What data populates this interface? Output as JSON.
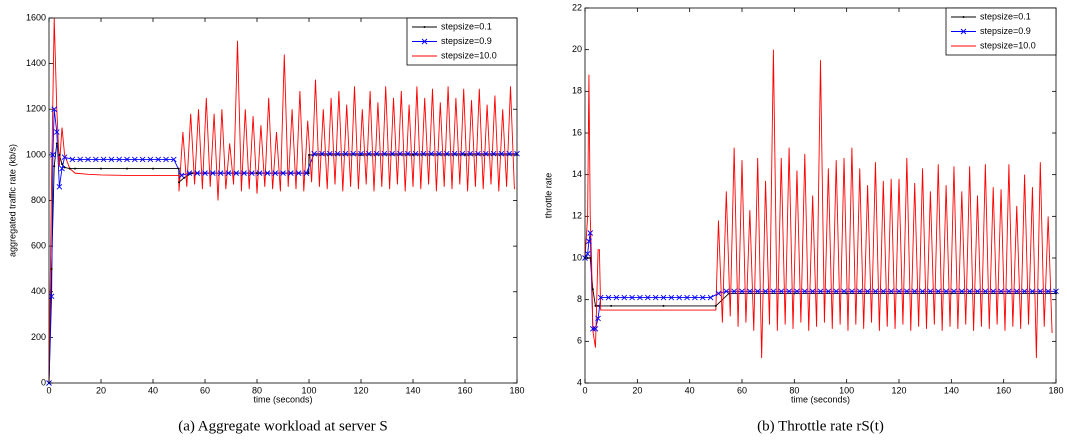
{
  "chart_data": [
    {
      "type": "line",
      "caption": "(a) Aggregate workload at server S",
      "xlabel": "time (seconds)",
      "ylabel": "aggregated traffic rate (kb/s)",
      "xlim": [
        0,
        180
      ],
      "xticks": [
        0,
        20,
        40,
        60,
        80,
        100,
        120,
        140,
        160,
        180
      ],
      "ylim": [
        0,
        1600
      ],
      "yticks": [
        0,
        200,
        400,
        600,
        800,
        1000,
        1200,
        1400,
        1600
      ],
      "legend": "upper right",
      "series": [
        {
          "name": "stepsize=0.1",
          "color": "#000000",
          "marker": "dot",
          "x": [
            0,
            1,
            2,
            3,
            4,
            5,
            6,
            8,
            10,
            20,
            30,
            40,
            49.9,
            50,
            52,
            55,
            60,
            80,
            99.9,
            100,
            120,
            140,
            160,
            180
          ],
          "values": [
            0,
            500,
            950,
            1050,
            1000,
            960,
            945,
            940,
            940,
            940,
            940,
            940,
            940,
            880,
            900,
            920,
            920,
            920,
            920,
            1000,
            1000,
            1000,
            1000,
            1000
          ]
        },
        {
          "name": "stepsize=0.9",
          "color": "#0000ff",
          "marker": "x",
          "x": [
            0,
            1,
            1.5,
            2,
            3,
            4,
            5,
            6,
            9,
            12,
            15,
            18,
            21,
            24,
            27,
            30,
            33,
            36,
            39,
            42,
            45,
            48,
            51,
            54,
            57,
            60,
            63,
            66,
            69,
            72,
            75,
            78,
            81,
            84,
            87,
            90,
            93,
            96,
            99,
            102,
            105,
            108,
            111,
            114,
            117,
            120,
            123,
            126,
            129,
            132,
            135,
            138,
            141,
            144,
            147,
            150,
            153,
            156,
            159,
            162,
            165,
            168,
            171,
            174,
            177,
            180
          ],
          "values": [
            0,
            380,
            1000,
            1200,
            1100,
            860,
            940,
            990,
            980,
            980,
            980,
            980,
            980,
            980,
            980,
            980,
            980,
            980,
            980,
            980,
            980,
            980,
            910,
            920,
            920,
            920,
            920,
            920,
            920,
            920,
            920,
            920,
            920,
            920,
            920,
            920,
            920,
            920,
            920,
            1005,
            1005,
            1005,
            1005,
            1005,
            1005,
            1005,
            1005,
            1005,
            1005,
            1005,
            1005,
            1005,
            1005,
            1005,
            1005,
            1005,
            1005,
            1005,
            1005,
            1005,
            1005,
            1005,
            1005,
            1005,
            1005,
            1005
          ]
        },
        {
          "name": "stepsize=10.0",
          "color": "#ff0000",
          "marker": "none",
          "x": [
            0,
            1,
            2,
            3,
            4,
            5,
            6,
            8,
            10,
            15,
            20,
            30,
            40,
            49.9,
            50,
            51.5,
            53,
            54.5,
            56,
            57.5,
            59,
            60.5,
            62,
            63.5,
            65,
            66.5,
            68,
            69.5,
            71,
            72.5,
            74,
            75.5,
            77,
            78.5,
            80,
            81.5,
            83,
            84.5,
            86,
            87.5,
            89,
            90.5,
            92,
            93.5,
            95,
            96.5,
            98,
            99.5,
            101,
            102.5,
            104,
            105.5,
            107,
            108.5,
            110,
            111.5,
            113,
            114.5,
            116,
            117.5,
            119,
            120.5,
            122,
            123.5,
            125,
            126.5,
            128,
            129.5,
            131,
            132.5,
            134,
            135.5,
            137,
            138.5,
            140,
            141.5,
            143,
            144.5,
            146,
            147.5,
            149,
            150.5,
            152,
            153.5,
            155,
            156.5,
            158,
            159.5,
            161,
            162.5,
            164,
            165.5,
            167,
            168.5,
            170,
            171.5,
            173,
            174.5,
            176,
            177.5,
            179
          ],
          "values": [
            0,
            900,
            1600,
            1200,
            950,
            1120,
            1000,
            940,
            920,
            915,
            912,
            910,
            910,
            910,
            840,
            1100,
            860,
            1180,
            870,
            1200,
            850,
            1250,
            860,
            1180,
            800,
            1200,
            850,
            1050,
            870,
            1500,
            840,
            1200,
            850,
            1170,
            830,
            1130,
            860,
            1250,
            850,
            1100,
            840,
            1440,
            860,
            1200,
            850,
            1280,
            840,
            1150,
            880,
            1330,
            860,
            1200,
            850,
            1250,
            870,
            1280,
            840,
            1220,
            860,
            1300,
            850,
            1200,
            870,
            1280,
            840,
            1230,
            860,
            1300,
            850,
            1250,
            870,
            1280,
            840,
            1220,
            860,
            1300,
            850,
            1250,
            870,
            1290,
            840,
            1230,
            860,
            1300,
            850,
            1250,
            870,
            1290,
            840,
            1240,
            860,
            1290,
            850,
            1220,
            870,
            1260,
            840,
            1200,
            860,
            1300,
            850
          ]
        }
      ]
    },
    {
      "type": "line",
      "caption": "(b) Throttle rate rS(t)",
      "xlabel": "time (seconds)",
      "ylabel": "throttle rate",
      "xlim": [
        0,
        180
      ],
      "xticks": [
        0,
        20,
        40,
        60,
        80,
        100,
        120,
        140,
        160,
        180
      ],
      "ylim": [
        4,
        22
      ],
      "yticks": [
        4,
        6,
        8,
        10,
        12,
        14,
        16,
        18,
        20,
        22
      ],
      "legend": "upper right",
      "series": [
        {
          "name": "stepsize=0.1",
          "color": "#000000",
          "marker": "dot",
          "x": [
            0,
            1,
            2,
            3,
            4,
            5,
            10,
            30,
            50,
            55,
            80,
            100,
            140,
            180
          ],
          "values": [
            10,
            10,
            10,
            8.5,
            7.7,
            7.7,
            7.7,
            7.7,
            7.7,
            8.3,
            8.3,
            8.3,
            8.3,
            8.3
          ]
        },
        {
          "name": "stepsize=0.9",
          "color": "#0000ff",
          "marker": "x",
          "x": [
            0,
            1,
            1.5,
            2,
            3,
            4,
            5,
            6,
            9,
            12,
            15,
            18,
            21,
            24,
            27,
            30,
            33,
            36,
            39,
            42,
            45,
            48,
            51,
            54,
            57,
            60,
            63,
            66,
            69,
            72,
            75,
            78,
            81,
            84,
            87,
            90,
            93,
            96,
            99,
            102,
            105,
            108,
            111,
            114,
            117,
            120,
            123,
            126,
            129,
            132,
            135,
            138,
            141,
            144,
            147,
            150,
            153,
            156,
            159,
            162,
            165,
            168,
            171,
            174,
            177,
            180
          ],
          "values": [
            10,
            10.2,
            10.8,
            11.2,
            6.6,
            6.6,
            7.1,
            8.1,
            8.1,
            8.1,
            8.1,
            8.1,
            8.1,
            8.1,
            8.1,
            8.1,
            8.1,
            8.1,
            8.1,
            8.1,
            8.1,
            8.1,
            8.3,
            8.4,
            8.4,
            8.4,
            8.4,
            8.4,
            8.4,
            8.4,
            8.4,
            8.4,
            8.4,
            8.4,
            8.4,
            8.4,
            8.4,
            8.4,
            8.4,
            8.4,
            8.4,
            8.4,
            8.4,
            8.4,
            8.4,
            8.4,
            8.4,
            8.4,
            8.4,
            8.4,
            8.4,
            8.4,
            8.4,
            8.4,
            8.4,
            8.4,
            8.4,
            8.4,
            8.4,
            8.4,
            8.4,
            8.4,
            8.4,
            8.4,
            8.4,
            8.4
          ]
        },
        {
          "name": "stepsize=10.0",
          "color": "#ff0000",
          "marker": "none",
          "x": [
            0,
            1,
            1.5,
            2,
            2.5,
            3,
            4,
            5,
            5.5,
            6,
            8,
            20,
            40,
            50,
            51,
            52.5,
            54,
            55.5,
            57,
            58.5,
            60,
            61.5,
            63,
            64.5,
            66,
            67.5,
            69,
            70.5,
            72,
            73.5,
            75,
            76.5,
            78,
            79.5,
            81,
            82.5,
            84,
            85.5,
            87,
            88.5,
            90,
            91.5,
            93,
            94.5,
            96,
            97.5,
            99,
            100.5,
            102,
            103.5,
            105,
            106.5,
            108,
            109.5,
            111,
            112.5,
            114,
            115.5,
            117,
            118.5,
            120,
            121.5,
            123,
            124.5,
            126,
            127.5,
            129,
            130.5,
            132,
            133.5,
            135,
            136.5,
            138,
            139.5,
            141,
            142.5,
            144,
            145.5,
            147,
            148.5,
            150,
            151.5,
            153,
            154.5,
            156,
            157.5,
            159,
            160.5,
            162,
            163.5,
            165,
            166.5,
            168,
            169.5,
            171,
            172.5,
            174,
            175.5,
            177,
            178.5
          ],
          "values": [
            10,
            12,
            18.8,
            12,
            10,
            6.5,
            5.7,
            10.4,
            10.4,
            7.5,
            7.5,
            7.5,
            7.5,
            7.5,
            11.8,
            6.9,
            13.2,
            7.2,
            15.3,
            6.7,
            14.7,
            6.9,
            12.3,
            6.5,
            14.8,
            5.2,
            13.7,
            6.8,
            20.0,
            6.5,
            14.8,
            6.8,
            15.3,
            6.6,
            14.2,
            6.9,
            15.0,
            6.5,
            13.0,
            6.7,
            19.5,
            6.9,
            14.3,
            6.6,
            14.7,
            6.8,
            14.8,
            6.5,
            15.3,
            6.8,
            14.3,
            6.6,
            13.5,
            6.9,
            14.6,
            6.5,
            13.7,
            6.7,
            13.8,
            6.6,
            13.8,
            6.8,
            14.8,
            6.5,
            13.6,
            6.7,
            14.3,
            6.6,
            13.2,
            6.8,
            14.5,
            6.5,
            13.5,
            6.7,
            14.4,
            6.6,
            13.2,
            6.8,
            14.4,
            6.5,
            13.0,
            6.7,
            14.5,
            6.6,
            13.4,
            6.8,
            13.3,
            6.5,
            14.5,
            6.7,
            12.5,
            6.6,
            14.0,
            6.8,
            13.4,
            5.2,
            14.6,
            6.7,
            12.0,
            6.4
          ]
        }
      ]
    }
  ]
}
